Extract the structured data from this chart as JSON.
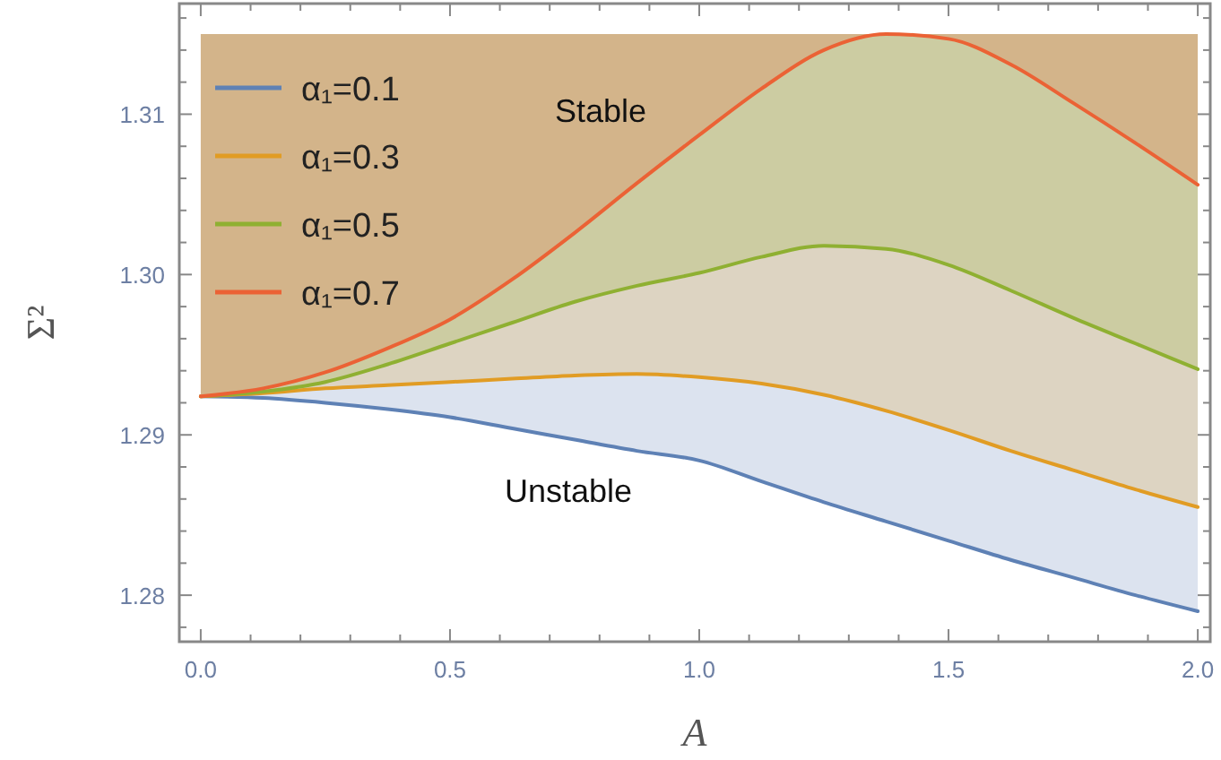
{
  "chart_data": {
    "type": "line",
    "xlabel": "A",
    "ylabel": "Σ²",
    "x": [
      0,
      0.125,
      0.25,
      0.375,
      0.5,
      0.625,
      0.75,
      0.875,
      1,
      1.125,
      1.25,
      1.375,
      1.5,
      1.625,
      1.75,
      1.875,
      2
    ],
    "series": [
      {
        "name": "α₁=0.1",
        "color": "#5e81b5",
        "values": [
          1.2924,
          1.2923,
          1.292,
          1.2916,
          1.2911,
          1.2904,
          1.2897,
          1.289,
          1.2884,
          1.2871,
          1.2858,
          1.2846,
          1.2834,
          1.2822,
          1.2811,
          1.28,
          1.279
        ]
      },
      {
        "name": "α₁=0.3",
        "color": "#e19c24",
        "values": [
          1.2924,
          1.2926,
          1.2929,
          1.2931,
          1.2933,
          1.2935,
          1.2937,
          1.2938,
          1.2936,
          1.2932,
          1.2925,
          1.2915,
          1.2903,
          1.289,
          1.2878,
          1.2866,
          1.2855
        ]
      },
      {
        "name": "α₁=0.5",
        "color": "#8fb032",
        "values": [
          1.2924,
          1.2927,
          1.2933,
          1.2944,
          1.2957,
          1.297,
          1.2983,
          1.2993,
          1.3001,
          1.3011,
          1.3018,
          1.3016,
          1.3006,
          1.299,
          1.2973,
          1.2957,
          1.2941
        ]
      },
      {
        "name": "α₁=0.7",
        "color": "#eb6235",
        "values": [
          1.2924,
          1.2929,
          1.2939,
          1.2954,
          1.2972,
          1.2997,
          1.3026,
          1.3057,
          1.3087,
          1.3116,
          1.314,
          1.315,
          1.3147,
          1.3131,
          1.3107,
          1.3082,
          1.3056
        ]
      }
    ],
    "xlim": [
      -0.043,
      2.025
    ],
    "ylim": [
      1.2771,
      1.3169
    ],
    "xticks": [
      {
        "value": 0,
        "label": "0.0"
      },
      {
        "value": 0.1,
        "label": null
      },
      {
        "value": 0.2,
        "label": null
      },
      {
        "value": 0.3,
        "label": null
      },
      {
        "value": 0.4,
        "label": null
      },
      0.5,
      {
        "value": 0.6,
        "label": null
      },
      {
        "value": 0.7,
        "label": null
      },
      {
        "value": 0.8,
        "label": null
      },
      {
        "value": 0.9,
        "label": null
      },
      {
        "value": 1,
        "label": "1.0"
      },
      {
        "value": 1.1,
        "label": null
      },
      {
        "value": 1.2,
        "label": null
      },
      {
        "value": 1.3,
        "label": null
      },
      {
        "value": 1.4,
        "label": null
      },
      1.5,
      {
        "value": 1.6,
        "label": null
      },
      {
        "value": 1.7,
        "label": null
      },
      {
        "value": 1.8,
        "label": null
      },
      {
        "value": 1.9,
        "label": null
      },
      {
        "value": 2,
        "label": "2.0"
      }
    ],
    "yticks": [
      {
        "value": 1.278,
        "label": null
      },
      1.28,
      {
        "value": 1.282,
        "label": null
      },
      {
        "value": 1.284,
        "label": null
      },
      {
        "value": 1.286,
        "label": null
      },
      {
        "value": 1.288,
        "label": null
      },
      1.29,
      {
        "value": 1.292,
        "label": null
      },
      {
        "value": 1.294,
        "label": null
      },
      {
        "value": 1.296,
        "label": null
      },
      {
        "value": 1.298,
        "label": null
      },
      {
        "value": 1.3,
        "label": "1.30"
      },
      {
        "value": 1.302,
        "label": null
      },
      {
        "value": 1.304,
        "label": null
      },
      {
        "value": 1.306,
        "label": null
      },
      {
        "value": 1.308,
        "label": null
      },
      1.31,
      {
        "value": 1.312,
        "label": null
      },
      {
        "value": 1.314,
        "label": null
      },
      {
        "value": 1.316,
        "label": null
      }
    ],
    "annotations": [
      "Stable",
      "Unstable"
    ],
    "legend": "top left",
    "grid": false,
    "marker": "none",
    "line_style": "solid"
  }
}
